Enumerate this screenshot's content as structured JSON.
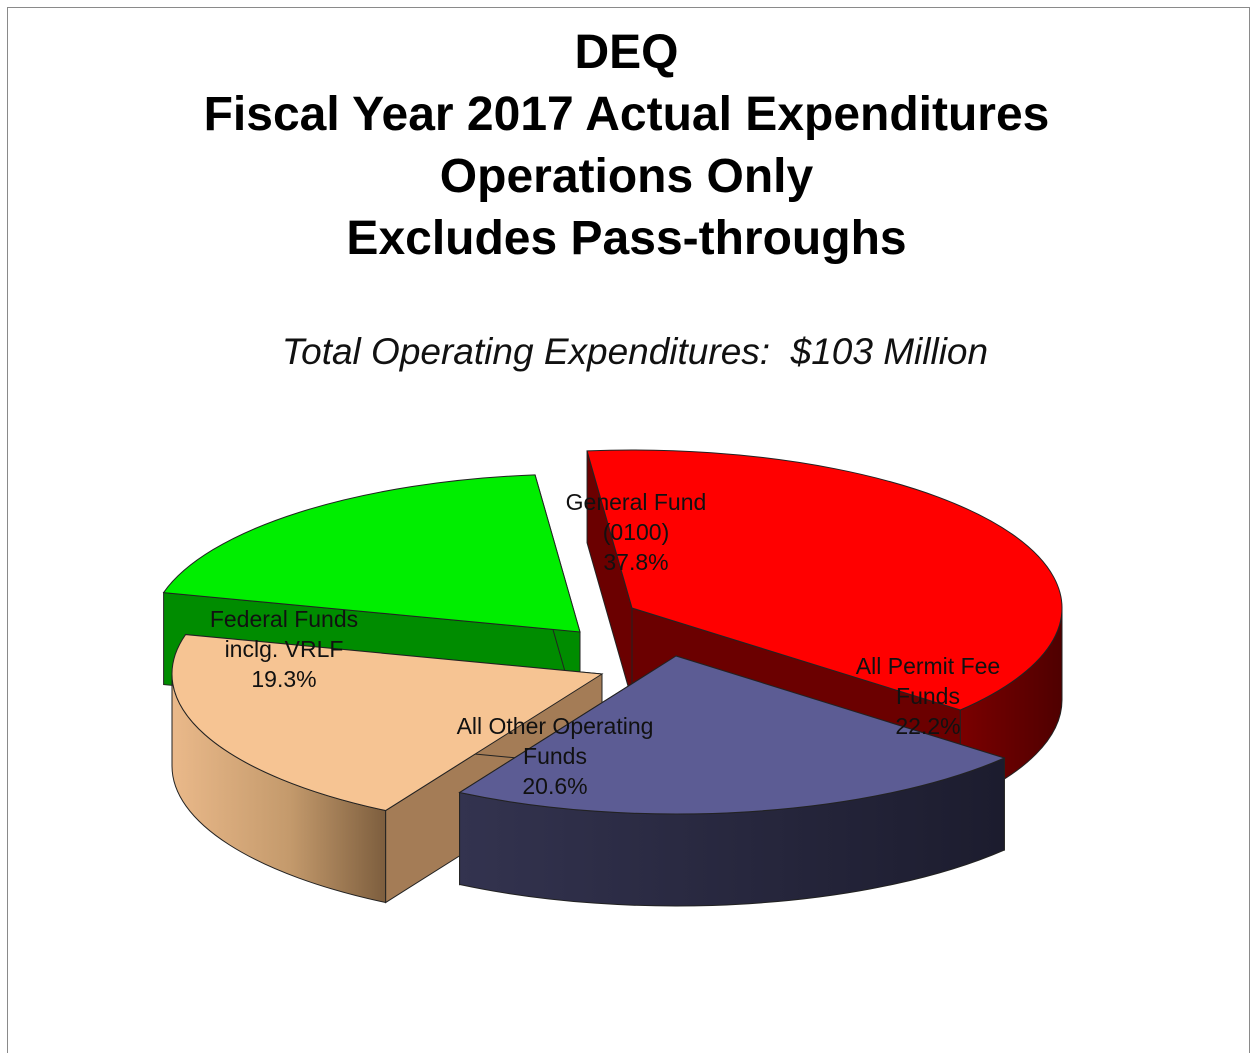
{
  "title_lines": [
    "DEQ",
    "Fiscal Year 2017 Actual Expenditures",
    "Operations Only",
    "Excludes Pass-throughs"
  ],
  "subtitle": "Total Operating Expenditures:  $103 Million",
  "chart_data": {
    "type": "pie",
    "title": "DEQ Fiscal Year 2017 Actual Expenditures Operations Only Excludes Pass-throughs",
    "subtitle": "Total Operating Expenditures:  $103 Million",
    "three_d": true,
    "exploded": true,
    "slices": [
      {
        "label_lines": [
          "General Fund",
          "(0100)",
          "37.8%"
        ],
        "value": 37.8,
        "color": "#ff0000",
        "side_color": "#6b0000"
      },
      {
        "label_lines": [
          "All Permit Fee",
          "Funds",
          "22.2%"
        ],
        "value": 22.2,
        "color": "#5c5c94",
        "side_color": "#23233a"
      },
      {
        "label_lines": [
          "All Other Operating",
          "Funds",
          "20.6%"
        ],
        "value": 20.6,
        "color": "#f6c493",
        "side_color": "#a47c56"
      },
      {
        "label_lines": [
          "Federal Funds",
          "inclg. VRLF",
          "19.3%"
        ],
        "value": 19.3,
        "color": "#00ee00",
        "side_color": "#008c00"
      }
    ]
  }
}
